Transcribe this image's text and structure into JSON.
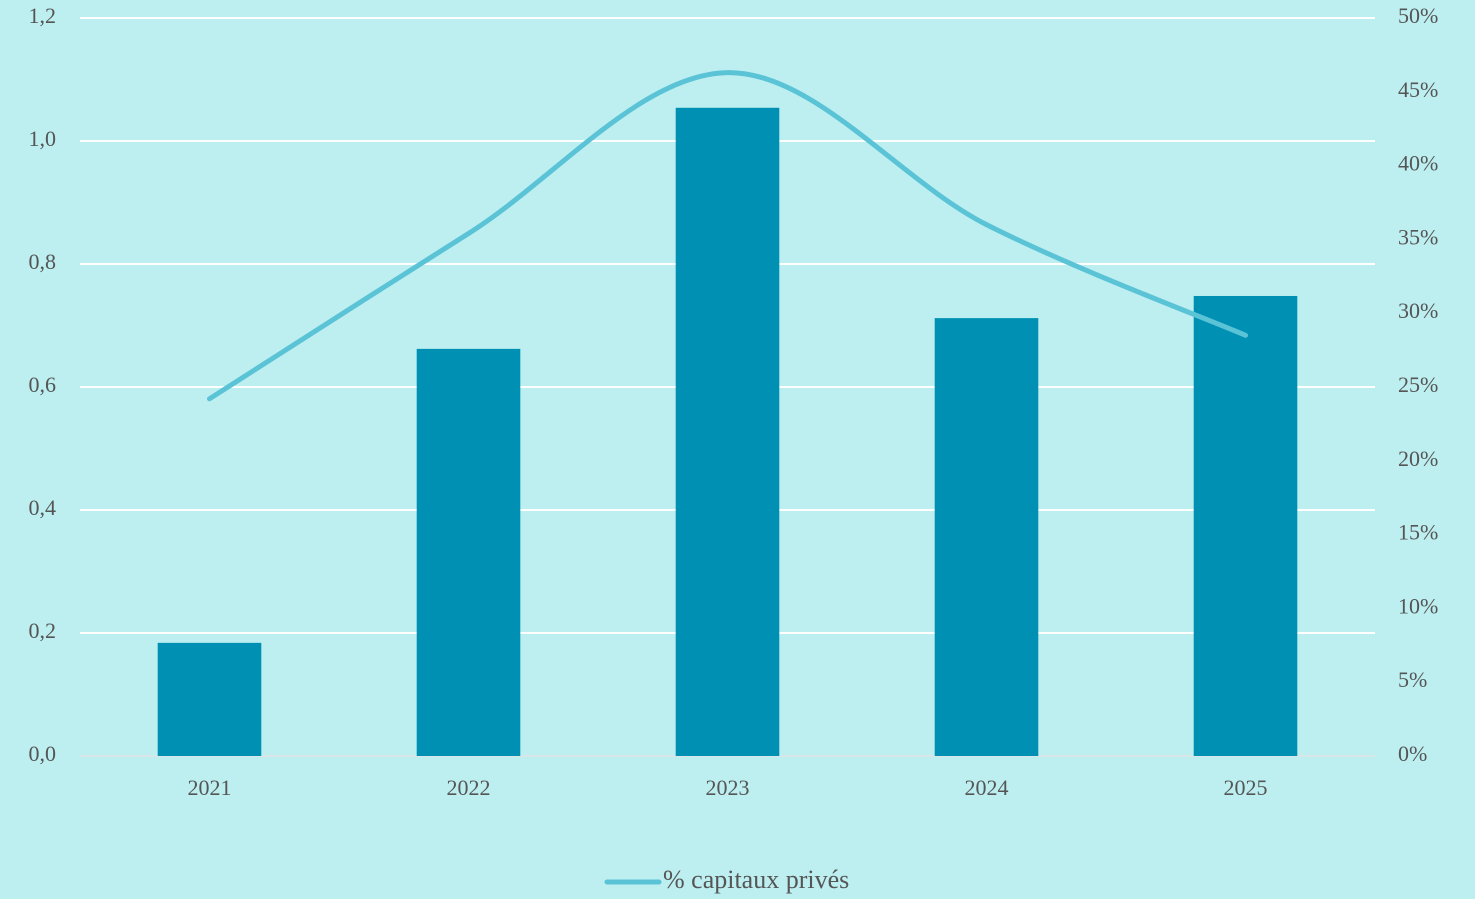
{
  "chart_data": {
    "type": "bar-line",
    "categories": [
      "2021",
      "2022",
      "2023",
      "2024",
      "2025"
    ],
    "series": [
      {
        "type": "bar",
        "color": "#0090b4",
        "values": [
          0.184,
          0.662,
          1.054,
          0.712,
          0.748
        ]
      },
      {
        "type": "line",
        "name": "% capitaux privés",
        "color": "#5bc3d6",
        "axis": "y2",
        "values": [
          24.2,
          35.4,
          46.3,
          36.0,
          28.5
        ]
      }
    ],
    "ylim": [
      0,
      1.2
    ],
    "yticks": [
      {
        "value": 0,
        "label": "0,0"
      },
      {
        "value": 0.2,
        "label": "0,2"
      },
      {
        "value": 0.4,
        "label": "0,4"
      },
      {
        "value": 0.6,
        "label": "0,6"
      },
      {
        "value": 0.8,
        "label": "0,8"
      },
      {
        "value": 1.0,
        "label": "1,0"
      },
      {
        "value": 1.2,
        "label": "1,2"
      }
    ],
    "y2lim": [
      0,
      50
    ],
    "y2ticks": [
      {
        "value": 0,
        "label": "0%"
      },
      {
        "value": 5,
        "label": "5%"
      },
      {
        "value": 10,
        "label": "10%"
      },
      {
        "value": 15,
        "label": "15%"
      },
      {
        "value": 20,
        "label": "20%"
      },
      {
        "value": 25,
        "label": "25%"
      },
      {
        "value": 30,
        "label": "30%"
      },
      {
        "value": 35,
        "label": "35%"
      },
      {
        "value": 40,
        "label": "40%"
      },
      {
        "value": 45,
        "label": "45%"
      },
      {
        "value": 50,
        "label": "50%"
      }
    ],
    "grid": true,
    "legend": "bottom"
  }
}
